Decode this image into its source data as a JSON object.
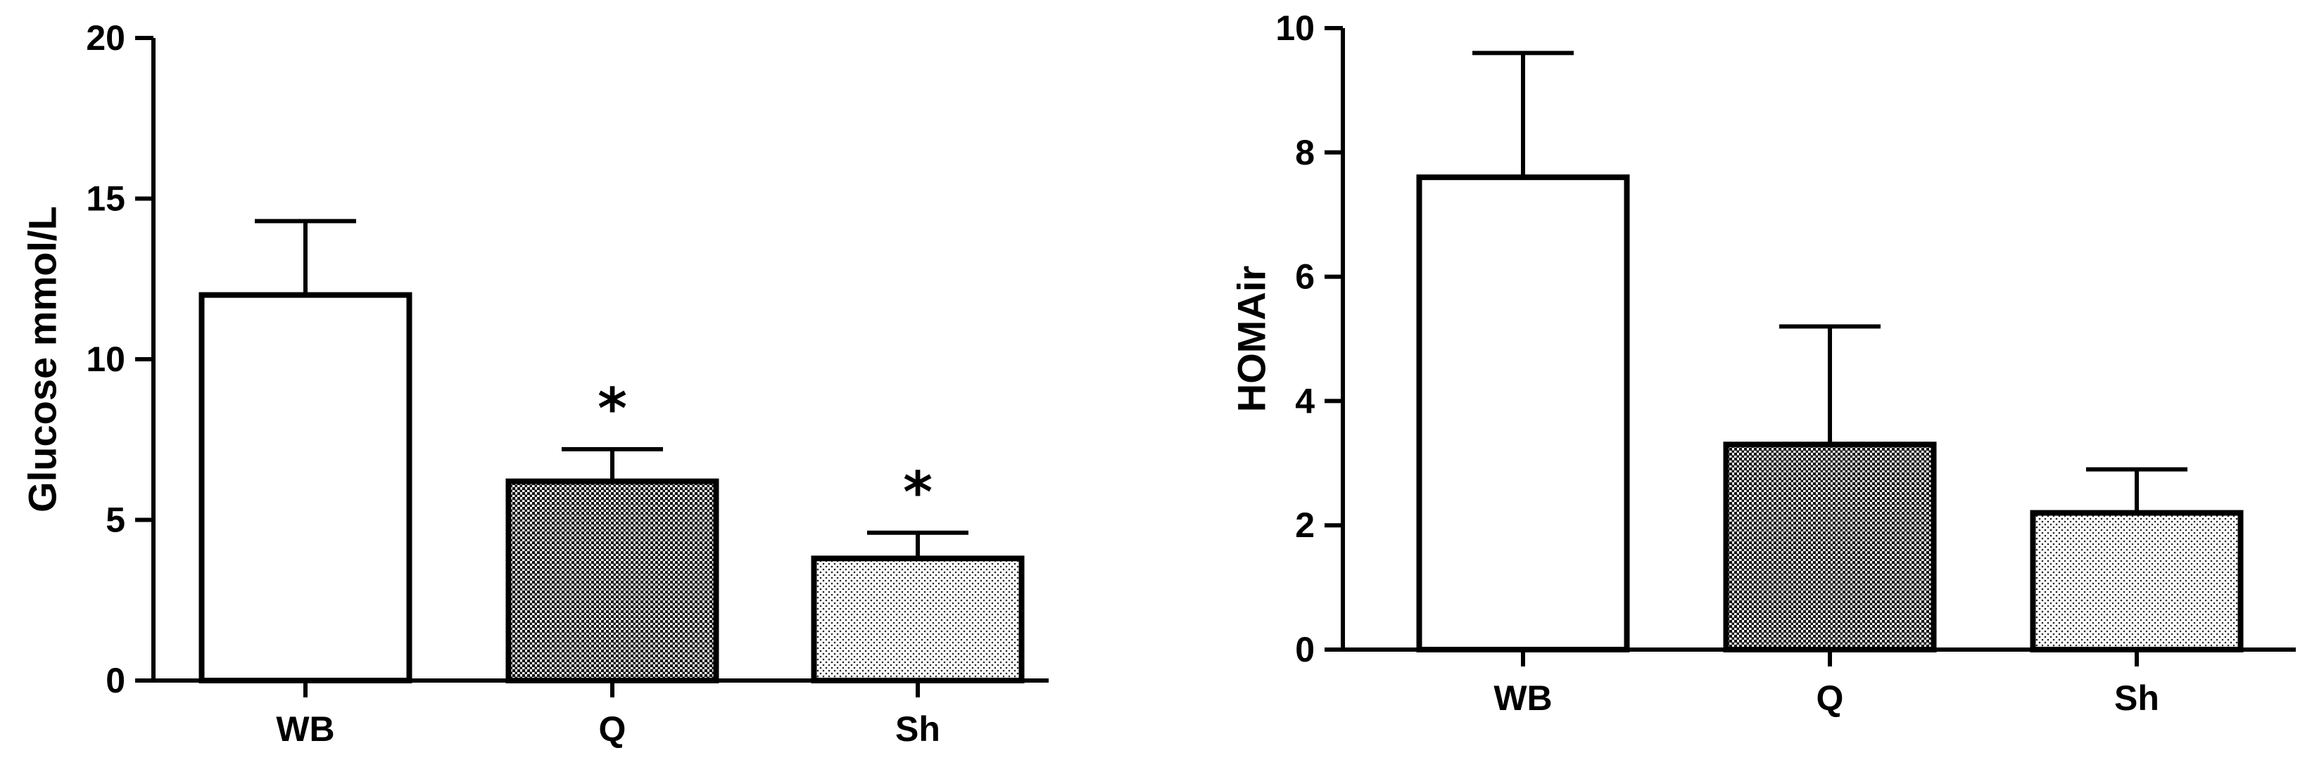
{
  "chart_data": [
    {
      "type": "bar",
      "categories": [
        "WB",
        "Q",
        "Sh"
      ],
      "values": [
        12.0,
        6.2,
        3.8
      ],
      "error": [
        2.3,
        1.0,
        0.8
      ],
      "significance": [
        "",
        "*",
        "*"
      ],
      "fills": [
        "white",
        "dark-dots",
        "light-dots"
      ],
      "ylabel": "Glucose mmol/L",
      "ylim": [
        0,
        20
      ],
      "yticks": [
        0,
        5,
        10,
        15,
        20
      ],
      "ytick_labels": [
        "0",
        "5",
        "10",
        "15",
        "20"
      ]
    },
    {
      "type": "bar",
      "categories": [
        "WB",
        "Q",
        "Sh"
      ],
      "values": [
        7.6,
        3.3,
        2.2
      ],
      "error": [
        2.0,
        1.9,
        0.7
      ],
      "significance": [
        "",
        "",
        ""
      ],
      "fills": [
        "white",
        "dark-dots",
        "light-dots"
      ],
      "ylabel": "HOMAir",
      "ylim": [
        0,
        10
      ],
      "yticks": [
        0,
        2,
        4,
        6,
        8,
        10
      ],
      "ytick_labels": [
        "0",
        "2",
        "4",
        "6",
        "8",
        "10"
      ]
    }
  ]
}
